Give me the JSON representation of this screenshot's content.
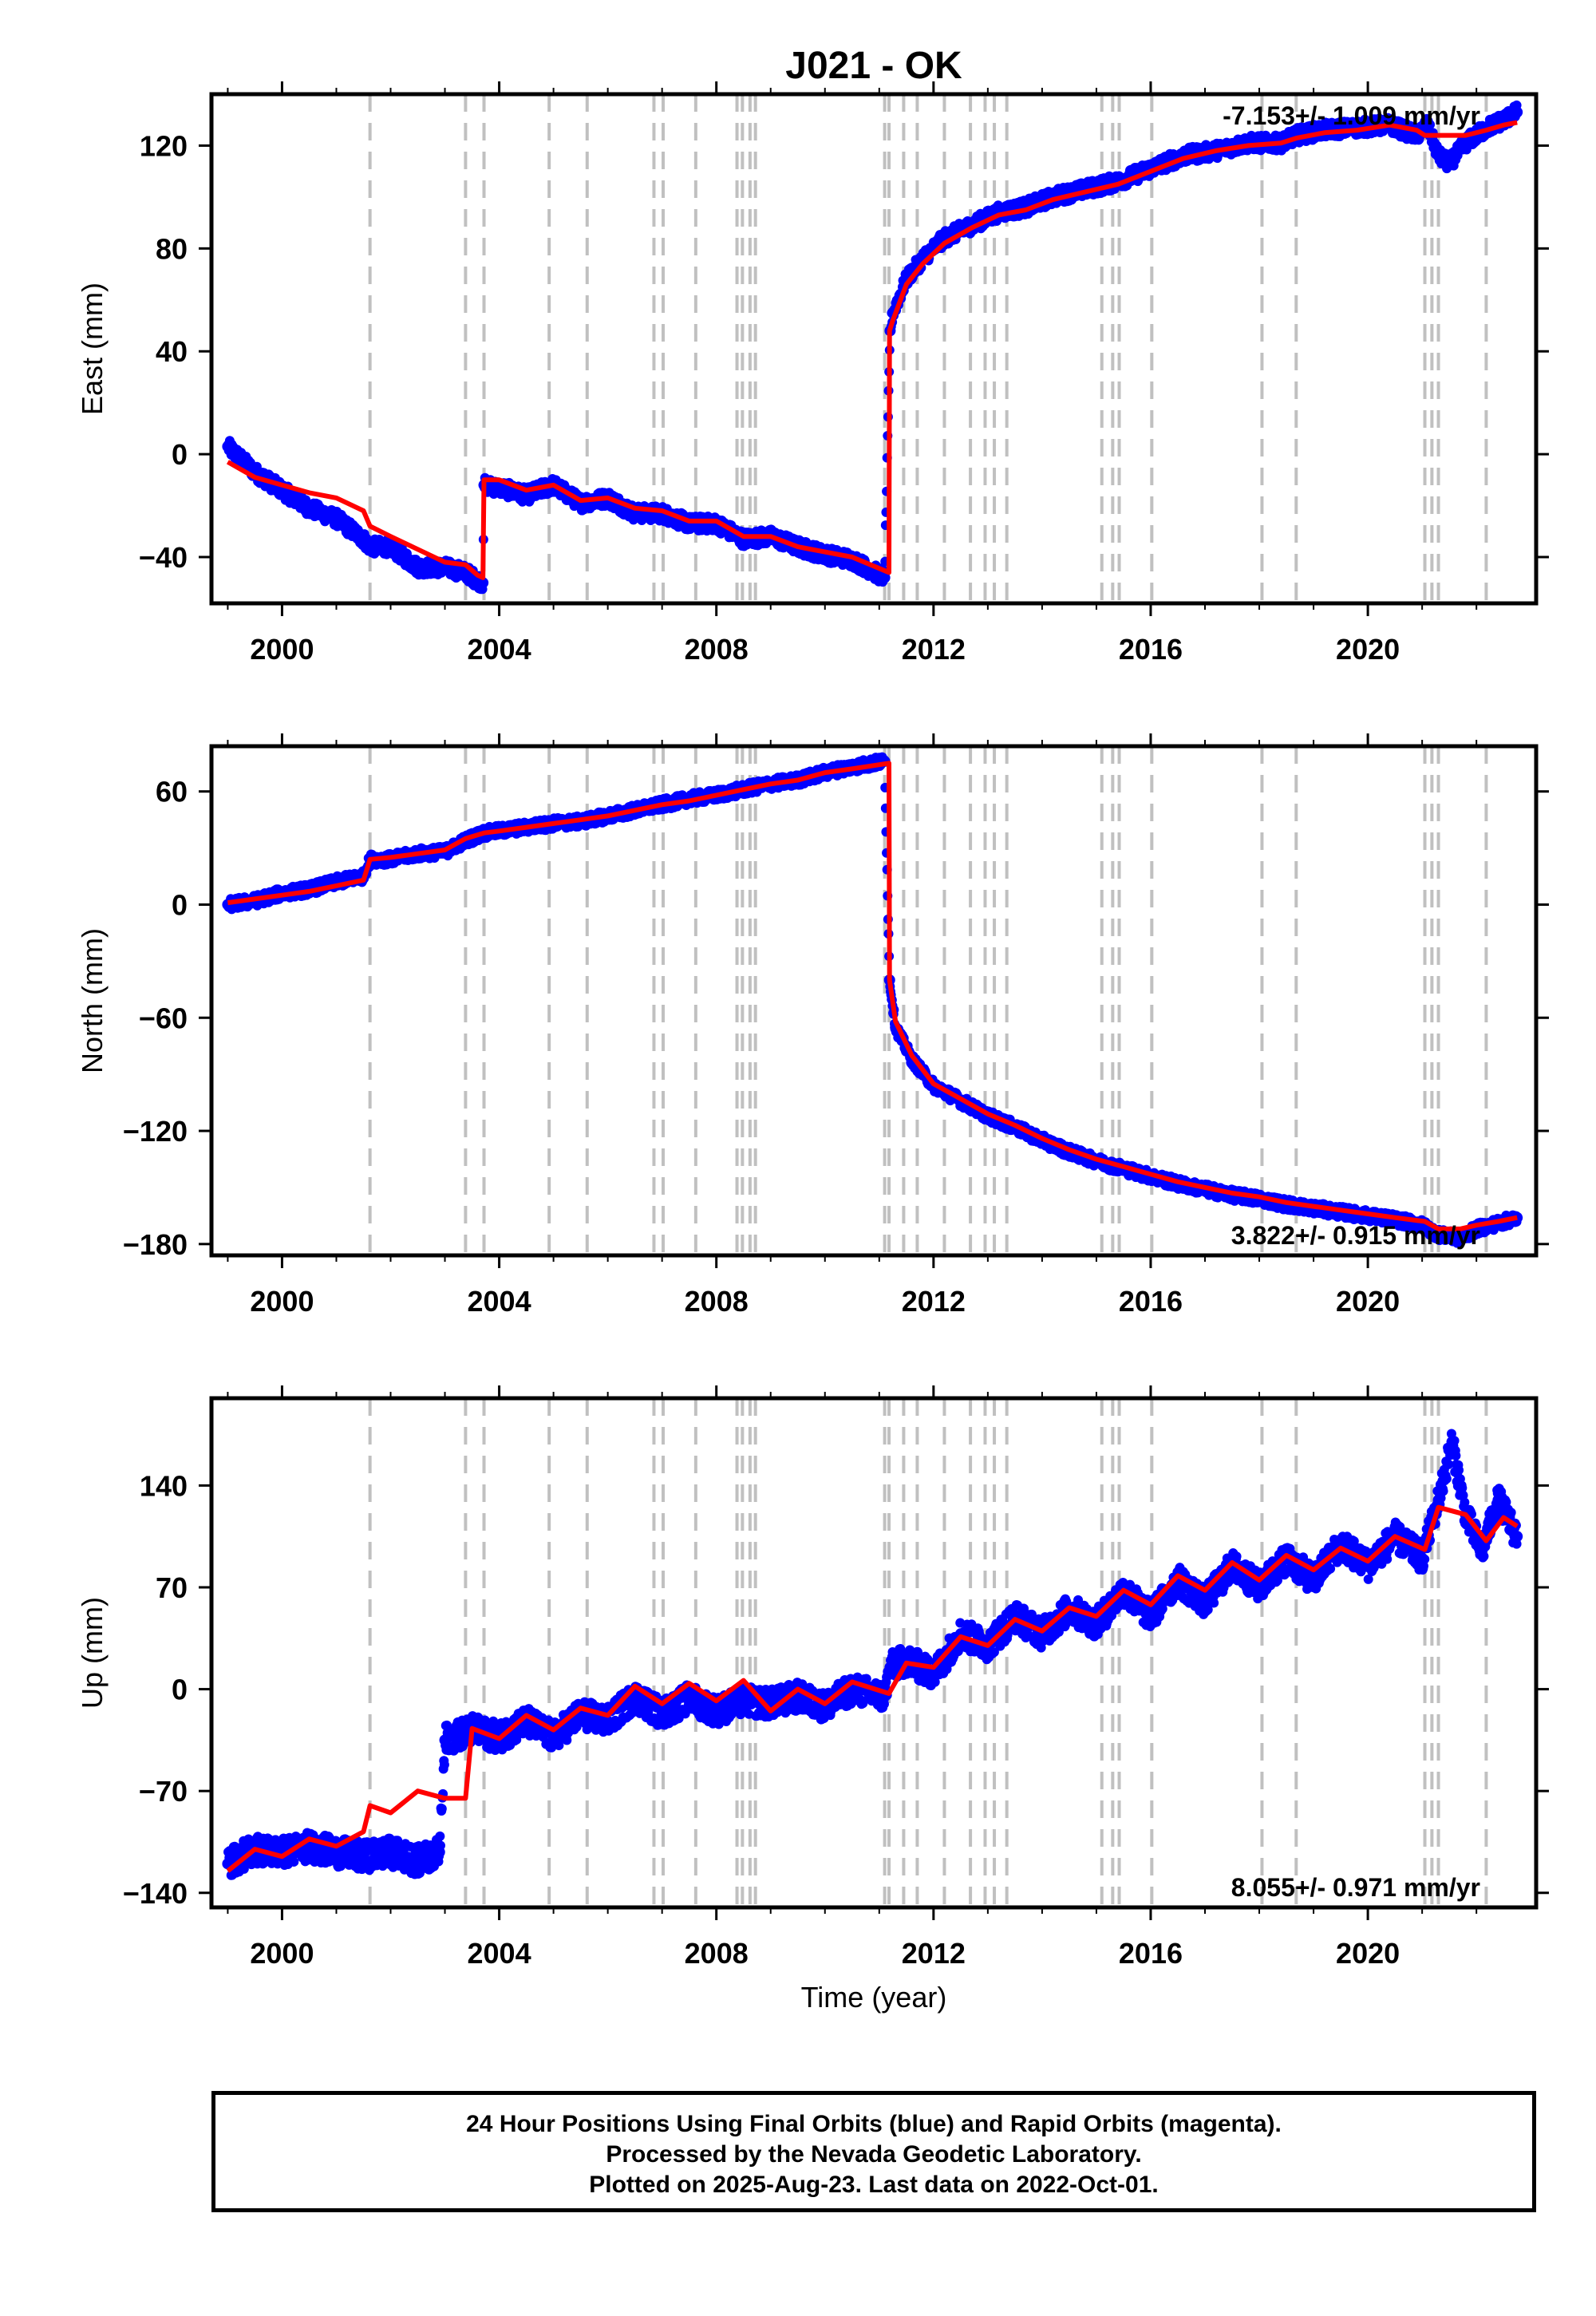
{
  "title": "J021 - OK",
  "colors": {
    "final_points": "#0000ff",
    "model": "#ff0000",
    "steps": "#c0c0c0",
    "axis": "#000000"
  },
  "footer": {
    "line1": "24 Hour Positions Using Final Orbits (blue) and Rapid Orbits (magenta).",
    "line2": "Processed by the Nevada Geodetic Laboratory.",
    "line3": "Plotted on 2025-Aug-23. Last data on 2022-Oct-01."
  },
  "chart_data": [
    {
      "type": "scatter",
      "panel": "east",
      "ylabel": "East (mm)",
      "xlabel": "",
      "xlim": [
        1998.7,
        2023.1
      ],
      "ylim": [
        -58,
        140
      ],
      "xticks": [
        2000,
        2004,
        2008,
        2012,
        2016,
        2020
      ],
      "yticks": [
        -40,
        0,
        40,
        80,
        120
      ],
      "rate_label": "-7.153+/- 1.009 mm/yr",
      "rate_position": "top-right",
      "grid": false,
      "step_epochs": [
        2001.62,
        2003.38,
        2003.72,
        2004.92,
        2005.62,
        2006.85,
        2007.02,
        2007.62,
        2008.38,
        2008.48,
        2008.62,
        2008.72,
        2011.1,
        2011.18,
        2011.45,
        2011.7,
        2012.2,
        2012.68,
        2012.95,
        2013.12,
        2013.35,
        2015.1,
        2015.3,
        2015.42,
        2016.02,
        2018.05,
        2018.68,
        2021.05,
        2021.18,
        2021.3,
        2022.18
      ],
      "series": [
        {
          "type": "scatter",
          "x": [
            1999.0,
            1999.5,
            2000.0,
            2000.5,
            2001.0,
            2001.5,
            2001.62,
            2002.0,
            2002.5,
            2003.0,
            2003.38,
            2003.6,
            2003.7,
            2003.72,
            2004.0,
            2004.5,
            2005.0,
            2005.5,
            2006.0,
            2006.5,
            2007.0,
            2007.5,
            2008.0,
            2008.5,
            2009.0,
            2009.5,
            2010.0,
            2010.5,
            2011.1,
            2011.2,
            2011.25,
            2011.5,
            2011.8,
            2012.2,
            2012.7,
            2013.2,
            2013.7,
            2014.2,
            2014.8,
            2015.4,
            2016.0,
            2016.6,
            2017.2,
            2017.8,
            2018.4,
            2018.7,
            2019.2,
            2019.8,
            2020.4,
            2020.9,
            2021.1,
            2021.3,
            2021.5,
            2021.8,
            2022.2,
            2022.5,
            2022.75
          ],
          "y": [
            3,
            -7,
            -14,
            -21,
            -25,
            -33,
            -36,
            -36,
            -44,
            -44,
            -46,
            -49,
            -50,
            -12,
            -13,
            -16,
            -12,
            -19,
            -17,
            -23,
            -23,
            -27,
            -27,
            -33,
            -32,
            -36,
            -39,
            -41,
            -48,
            48,
            55,
            68,
            76,
            84,
            89,
            94,
            96,
            100,
            103,
            106,
            111,
            116,
            118,
            121,
            121,
            124,
            126,
            127,
            128,
            124,
            128,
            116,
            113,
            121,
            127,
            130,
            133
          ]
        },
        {
          "type": "line",
          "x": [
            1999.0,
            1999.5,
            2000.0,
            2000.5,
            2001.0,
            2001.5,
            2001.62,
            2002.0,
            2002.5,
            2003.0,
            2003.38,
            2003.6,
            2003.7,
            2003.72,
            2004.0,
            2004.5,
            2005.0,
            2005.5,
            2006.0,
            2006.5,
            2007.0,
            2007.5,
            2008.0,
            2008.5,
            2009.0,
            2009.5,
            2010.0,
            2010.5,
            2011.18,
            2011.19,
            2011.25,
            2011.5,
            2011.8,
            2012.2,
            2012.7,
            2013.2,
            2013.7,
            2014.2,
            2014.8,
            2015.4,
            2016.0,
            2016.6,
            2017.2,
            2017.8,
            2018.4,
            2018.7,
            2019.2,
            2019.8,
            2020.4,
            2020.9,
            2021.05,
            2021.3,
            2021.5,
            2021.8,
            2022.18,
            2022.5,
            2022.75
          ],
          "y": [
            -3,
            -9,
            -12,
            -15,
            -17,
            -22,
            -28,
            -32,
            -37,
            -42,
            -43,
            -47,
            -48,
            -10,
            -10,
            -14,
            -12,
            -18,
            -17,
            -21,
            -22,
            -26,
            -26,
            -32,
            -32,
            -36,
            -38,
            -40,
            -46,
            48,
            52,
            66,
            74,
            82,
            88,
            93,
            95,
            99,
            102,
            105,
            110,
            115,
            118,
            120,
            121,
            123,
            125,
            126,
            128,
            126,
            124,
            124,
            124,
            124,
            126,
            128,
            129
          ]
        }
      ]
    },
    {
      "type": "scatter",
      "panel": "north",
      "ylabel": "North (mm)",
      "xlabel": "",
      "xlim": [
        1998.7,
        2023.1
      ],
      "ylim": [
        -186,
        84
      ],
      "xticks": [
        2000,
        2004,
        2008,
        2012,
        2016,
        2020
      ],
      "yticks": [
        -180,
        -120,
        -60,
        0,
        60
      ],
      "rate_label": "3.822+/- 0.915 mm/yr",
      "rate_position": "bottom-right",
      "grid": false,
      "step_epochs": [
        2001.62,
        2003.38,
        2003.72,
        2004.92,
        2005.62,
        2006.85,
        2007.02,
        2007.62,
        2008.38,
        2008.48,
        2008.62,
        2008.72,
        2011.1,
        2011.18,
        2011.45,
        2011.7,
        2012.2,
        2012.68,
        2012.95,
        2013.12,
        2013.35,
        2015.1,
        2015.3,
        2015.42,
        2016.02,
        2018.05,
        2018.68,
        2021.05,
        2021.18,
        2021.3,
        2022.18
      ],
      "series": [
        {
          "type": "scatter",
          "x": [
            1999.0,
            1999.5,
            2000.0,
            2000.5,
            2001.0,
            2001.5,
            2001.62,
            2002.0,
            2002.5,
            2003.0,
            2003.38,
            2003.72,
            2004.0,
            2004.5,
            2005.0,
            2005.5,
            2006.0,
            2006.5,
            2007.0,
            2007.5,
            2008.0,
            2008.5,
            2009.0,
            2009.5,
            2010.0,
            2010.5,
            2011.1,
            2011.19,
            2011.3,
            2011.6,
            2012.0,
            2012.5,
            2013.0,
            2013.5,
            2014.0,
            2014.5,
            2015.0,
            2015.5,
            2016.0,
            2016.5,
            2017.0,
            2017.5,
            2018.0,
            2018.5,
            2019.0,
            2019.5,
            2020.0,
            2020.5,
            2021.0,
            2021.3,
            2021.7,
            2022.0,
            2022.4,
            2022.75
          ],
          "y": [
            0,
            2,
            6,
            8,
            12,
            15,
            24,
            24,
            27,
            28,
            34,
            38,
            39,
            41,
            43,
            44,
            47,
            50,
            53,
            56,
            58,
            61,
            64,
            66,
            70,
            73,
            76,
            -40,
            -65,
            -82,
            -96,
            -104,
            -112,
            -118,
            -125,
            -131,
            -136,
            -140,
            -144,
            -148,
            -151,
            -154,
            -156,
            -159,
            -161,
            -163,
            -165,
            -167,
            -170,
            -175,
            -177,
            -172,
            -169,
            -166
          ]
        },
        {
          "type": "line",
          "x": [
            1999.0,
            1999.5,
            2000.0,
            2000.5,
            2001.0,
            2001.5,
            2001.62,
            2002.0,
            2002.5,
            2003.0,
            2003.38,
            2003.72,
            2004.0,
            2004.5,
            2005.0,
            2005.5,
            2006.0,
            2006.5,
            2007.0,
            2007.5,
            2008.0,
            2008.5,
            2009.0,
            2009.5,
            2010.0,
            2010.5,
            2011.18,
            2011.19,
            2011.3,
            2011.6,
            2012.0,
            2012.5,
            2013.0,
            2013.5,
            2014.0,
            2014.5,
            2015.0,
            2015.5,
            2016.0,
            2016.5,
            2017.0,
            2017.5,
            2018.0,
            2018.5,
            2019.0,
            2019.5,
            2020.0,
            2020.5,
            2021.05,
            2021.3,
            2021.7,
            2022.0,
            2022.4,
            2022.75
          ],
          "y": [
            1,
            3,
            5,
            7,
            10,
            13,
            24,
            25,
            27,
            29,
            35,
            38,
            39,
            41,
            43,
            45,
            47,
            50,
            53,
            55,
            58,
            61,
            64,
            66,
            70,
            72,
            75,
            -40,
            -62,
            -80,
            -95,
            -103,
            -111,
            -117,
            -124,
            -130,
            -135,
            -139,
            -143,
            -147,
            -150,
            -153,
            -155,
            -158,
            -160,
            -162,
            -164,
            -166,
            -168,
            -172,
            -172,
            -170,
            -168,
            -166
          ]
        }
      ]
    },
    {
      "type": "scatter",
      "panel": "up",
      "ylabel": "Up (mm)",
      "xlabel": "Time (year)",
      "xlim": [
        1998.7,
        2023.1
      ],
      "ylim": [
        -150,
        200
      ],
      "xticks": [
        2000,
        2004,
        2008,
        2012,
        2016,
        2020
      ],
      "yticks": [
        -140,
        -70,
        0,
        70,
        140
      ],
      "rate_label": "8.055+/- 0.971 mm/yr",
      "rate_position": "bottom-right",
      "grid": false,
      "step_epochs": [
        2001.62,
        2003.38,
        2003.72,
        2004.92,
        2005.62,
        2006.85,
        2007.02,
        2007.62,
        2008.38,
        2008.48,
        2008.62,
        2008.72,
        2011.1,
        2011.18,
        2011.45,
        2011.7,
        2012.2,
        2012.68,
        2012.95,
        2013.12,
        2013.35,
        2015.1,
        2015.3,
        2015.42,
        2016.02,
        2018.05,
        2018.68,
        2021.05,
        2021.18,
        2021.3,
        2022.18
      ],
      "series": [
        {
          "type": "scatter",
          "x": [
            1999.0,
            1999.5,
            2000.0,
            2000.5,
            2001.0,
            2001.5,
            2002.0,
            2002.5,
            2002.9,
            2003.0,
            2003.5,
            2004.0,
            2004.5,
            2005.0,
            2005.5,
            2006.0,
            2006.5,
            2007.0,
            2007.5,
            2008.0,
            2008.5,
            2009.0,
            2009.5,
            2010.0,
            2010.5,
            2011.1,
            2011.2,
            2011.5,
            2012.0,
            2012.5,
            2013.0,
            2013.5,
            2014.0,
            2014.5,
            2015.0,
            2015.5,
            2016.0,
            2016.5,
            2017.0,
            2017.5,
            2018.0,
            2018.5,
            2019.0,
            2019.5,
            2020.0,
            2020.5,
            2021.0,
            2021.3,
            2021.55,
            2021.8,
            2022.1,
            2022.4,
            2022.75
          ],
          "y": [
            -120,
            -110,
            -112,
            -108,
            -112,
            -115,
            -112,
            -118,
            -112,
            -35,
            -28,
            -33,
            -22,
            -33,
            -17,
            -22,
            -5,
            -17,
            -6,
            -15,
            -8,
            -10,
            -5,
            -12,
            0,
            -5,
            15,
            20,
            10,
            38,
            30,
            50,
            38,
            55,
            45,
            68,
            50,
            75,
            60,
            85,
            70,
            90,
            75,
            100,
            85,
            105,
            90,
            130,
            170,
            120,
            95,
            130,
            105
          ]
        },
        {
          "type": "line",
          "x": [
            1999.0,
            1999.5,
            2000.0,
            2000.5,
            2001.0,
            2001.5,
            2001.62,
            2002.0,
            2002.5,
            2003.0,
            2003.38,
            2003.5,
            2004.0,
            2004.5,
            2005.0,
            2005.5,
            2006.0,
            2006.5,
            2007.0,
            2007.5,
            2008.0,
            2008.5,
            2009.0,
            2009.5,
            2010.0,
            2010.5,
            2011.18,
            2011.5,
            2012.0,
            2012.5,
            2013.0,
            2013.5,
            2014.0,
            2014.5,
            2015.0,
            2015.5,
            2016.0,
            2016.5,
            2017.0,
            2017.5,
            2018.0,
            2018.5,
            2019.0,
            2019.5,
            2020.0,
            2020.5,
            2021.05,
            2021.3,
            2021.8,
            2022.18,
            2022.5,
            2022.75
          ],
          "y": [
            -125,
            -110,
            -115,
            -103,
            -108,
            -98,
            -80,
            -85,
            -70,
            -75,
            -75,
            -27,
            -34,
            -18,
            -28,
            -13,
            -18,
            2,
            -10,
            4,
            -8,
            6,
            -15,
            0,
            -10,
            5,
            -3,
            18,
            15,
            36,
            30,
            48,
            40,
            56,
            50,
            68,
            58,
            78,
            68,
            87,
            75,
            92,
            82,
            97,
            88,
            105,
            96,
            125,
            120,
            102,
            118,
            112
          ]
        }
      ]
    }
  ]
}
